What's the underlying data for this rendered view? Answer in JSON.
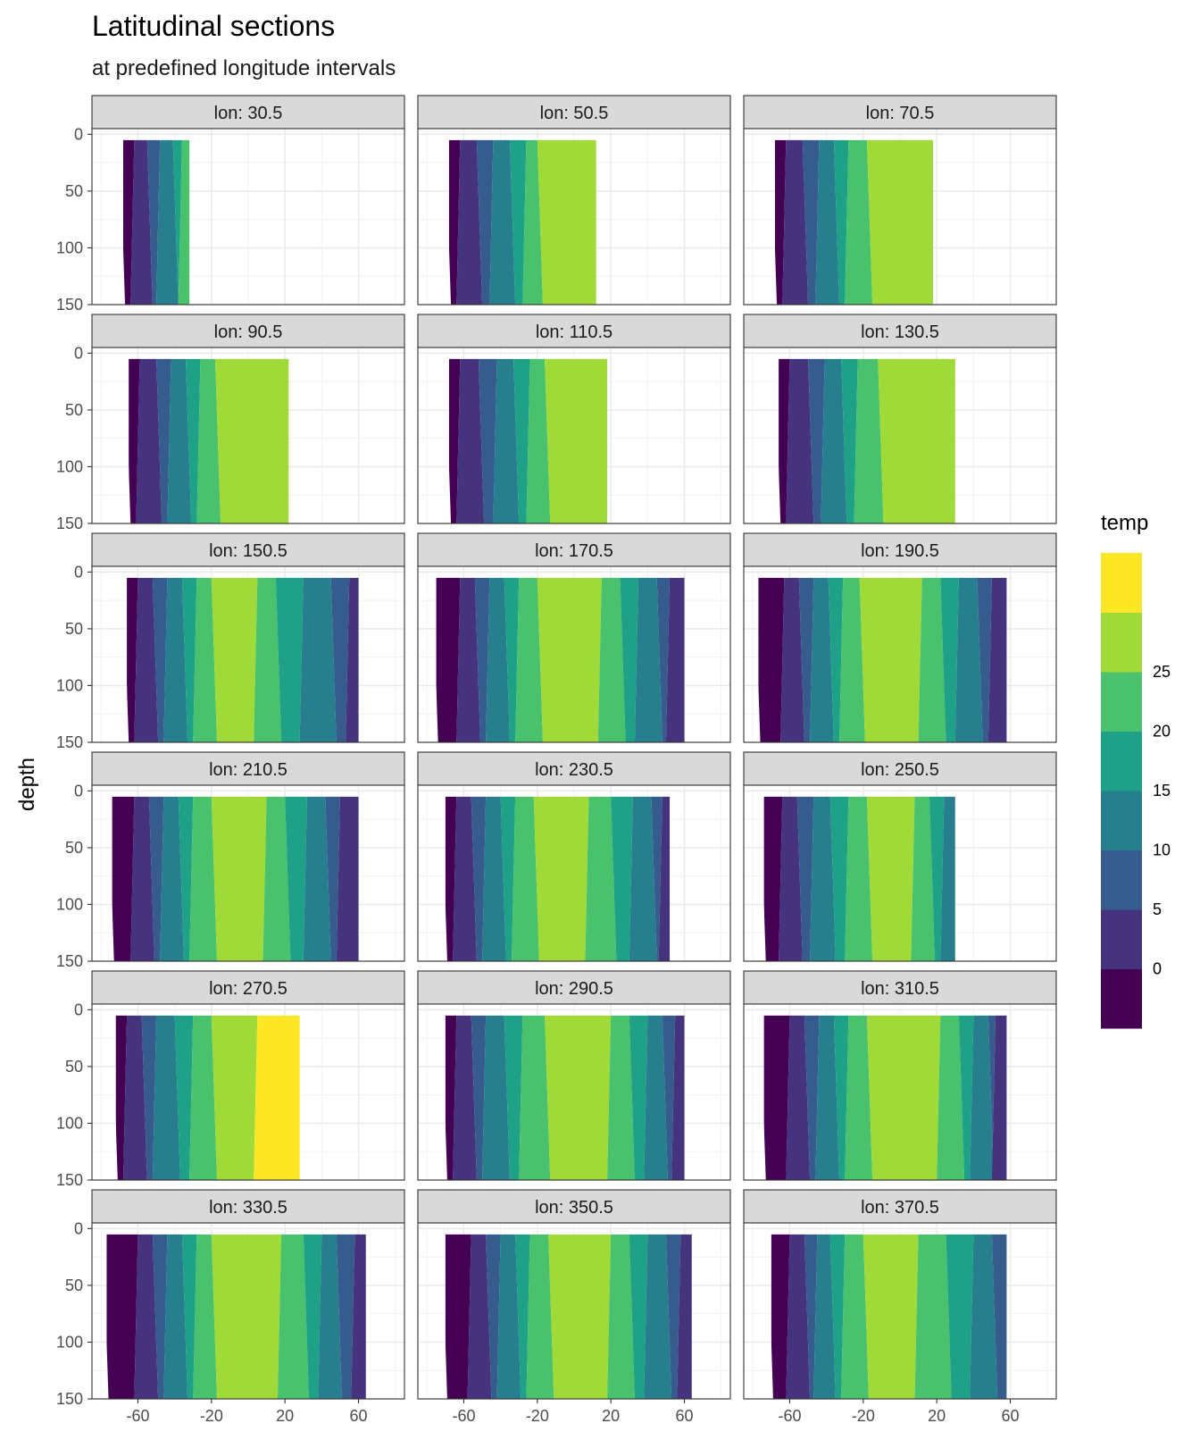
{
  "chart_data": {
    "type": "contour",
    "title": "Latitudinal sections",
    "subtitle": "at predefined longitude intervals",
    "xlabel": "",
    "ylabel": "depth",
    "x_ticks": [
      -60,
      -20,
      20,
      60
    ],
    "x_range": [
      -85,
      85
    ],
    "y_ticks": [
      0,
      50,
      100,
      150
    ],
    "y_range": [
      150,
      -5
    ],
    "y_reversed": true,
    "grid": true,
    "legend": {
      "title": "temp",
      "position": "right",
      "breaks": [
        0,
        5,
        10,
        15,
        20,
        25
      ],
      "colors": [
        "#440154",
        "#46337e",
        "#365c8d",
        "#277f8e",
        "#1fa187",
        "#4ac16d",
        "#a0da39",
        "#fde725"
      ]
    },
    "panels": [
      {
        "label": "lon: 30.5",
        "lat_min": -68,
        "lat_max": -32,
        "band_edges": [
          -62,
          -55,
          -48,
          -41,
          -36
        ],
        "warm_center": null
      },
      {
        "label": "lon: 50.5",
        "lat_min": -68,
        "lat_max": 12,
        "band_edges": [
          -62,
          -53,
          -44,
          -35,
          -26,
          -20
        ],
        "warm_center": 0
      },
      {
        "label": "lon: 70.5",
        "lat_min": -68,
        "lat_max": 18,
        "band_edges": [
          -62,
          -53,
          -44,
          -36,
          -28,
          -18
        ],
        "warm_center": 5
      },
      {
        "label": "lon: 90.5",
        "lat_min": -65,
        "lat_max": 22,
        "band_edges": [
          -59,
          -50,
          -42,
          -34,
          -26,
          -18
        ],
        "warm_center": 5
      },
      {
        "label": "lon: 110.5",
        "lat_min": -68,
        "lat_max": 18,
        "band_edges": [
          -62,
          -52,
          -42,
          -33,
          -24,
          -16
        ],
        "warm_center": 0
      },
      {
        "label": "lon: 130.5",
        "lat_min": -66,
        "lat_max": 30,
        "band_edges": [
          -60,
          -50,
          -41,
          -32,
          -23,
          -12
        ],
        "warm_center": 5
      },
      {
        "label": "lon: 150.5",
        "lat_min": -66,
        "lat_max": 60,
        "band_edges": [
          -60,
          -52,
          -44,
          -36,
          -28,
          -20,
          5,
          15,
          30,
          45,
          55
        ],
        "warm_center": 0
      },
      {
        "label": "lon: 170.5",
        "lat_min": -75,
        "lat_max": 60,
        "band_edges": [
          -62,
          -54,
          -46,
          -38,
          -30,
          -20,
          15,
          25,
          35,
          45,
          52
        ],
        "warm_center": 0
      },
      {
        "label": "lon: 190.5",
        "lat_min": -77,
        "lat_max": 58,
        "band_edges": [
          -63,
          -55,
          -47,
          -39,
          -31,
          -22,
          12,
          22,
          32,
          42,
          50
        ],
        "warm_center": -2
      },
      {
        "label": "lon: 210.5",
        "lat_min": -74,
        "lat_max": 60,
        "band_edges": [
          -62,
          -54,
          -46,
          -38,
          -30,
          -20,
          10,
          20,
          32,
          42,
          50
        ],
        "warm_center": -5
      },
      {
        "label": "lon: 230.5",
        "lat_min": -70,
        "lat_max": 52,
        "band_edges": [
          -64,
          -56,
          -48,
          -40,
          -32,
          -22,
          8,
          20,
          32,
          42,
          48
        ],
        "warm_center": -10
      },
      {
        "label": "lon: 250.5",
        "lat_min": -74,
        "lat_max": 30,
        "band_edges": [
          -64,
          -56,
          -47,
          -38,
          -28,
          -18,
          8,
          16,
          24
        ],
        "warm_center": -5
      },
      {
        "label": "lon: 270.5",
        "lat_min": -72,
        "lat_max": 28,
        "band_edges": [
          -66,
          -58,
          -50,
          -40,
          -30,
          -20,
          5
        ],
        "warm_center": 8
      },
      {
        "label": "lon: 290.5",
        "lat_min": -70,
        "lat_max": 60,
        "band_edges": [
          -64,
          -56,
          -48,
          -38,
          -28,
          -16,
          20,
          30,
          40,
          48,
          55
        ],
        "warm_center": 5
      },
      {
        "label": "lon: 310.5",
        "lat_min": -74,
        "lat_max": 58,
        "band_edges": [
          -60,
          -52,
          -44,
          -36,
          -28,
          -18,
          22,
          32,
          40,
          48,
          52
        ],
        "warm_center": 0
      },
      {
        "label": "lon: 330.5",
        "lat_min": -77,
        "lat_max": 64,
        "band_edges": [
          -60,
          -52,
          -44,
          -36,
          -28,
          -20,
          18,
          30,
          40,
          48,
          58
        ],
        "warm_center": 0
      },
      {
        "label": "lon: 350.5",
        "lat_min": -70,
        "lat_max": 64,
        "band_edges": [
          -56,
          -48,
          -40,
          -32,
          -24,
          -14,
          20,
          30,
          40,
          50,
          58
        ],
        "warm_center": -5
      },
      {
        "label": "lon: 370.5",
        "lat_min": -70,
        "lat_max": 58,
        "band_edges": [
          -60,
          -52,
          -45,
          -38,
          -30,
          -20,
          10,
          25,
          40,
          50
        ],
        "warm_center": -8
      }
    ]
  }
}
